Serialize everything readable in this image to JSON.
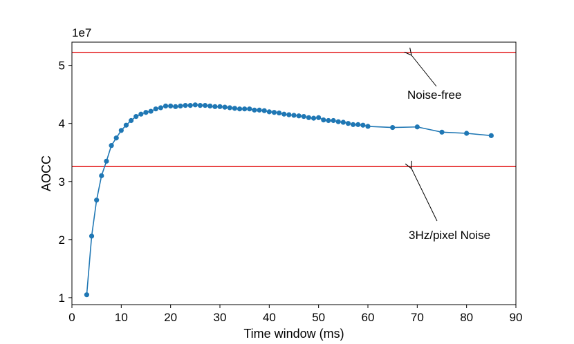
{
  "chart_data": {
    "type": "line",
    "xlabel": "Time window (ms)",
    "ylabel": "AOCC",
    "y_scale_label": "1e7",
    "xlim": [
      0,
      90
    ],
    "ylim": [
      0.88,
      5.4
    ],
    "x_ticks": [
      0,
      10,
      20,
      30,
      40,
      50,
      60,
      70,
      80,
      90
    ],
    "x_tick_labels": [
      "0",
      "10",
      "20",
      "30",
      "40",
      "50",
      "60",
      "70",
      "80",
      "90"
    ],
    "y_ticks": [
      1,
      2,
      3,
      4,
      5
    ],
    "y_tick_labels": [
      "1",
      "2",
      "3",
      "4",
      "5"
    ],
    "grid": false,
    "series": [
      {
        "color": "#1f77b4",
        "marker": "circle",
        "x": [
          3,
          4,
          5,
          6,
          7,
          8,
          9,
          10,
          11,
          12,
          13,
          14,
          15,
          16,
          17,
          18,
          19,
          20,
          21,
          22,
          23,
          24,
          25,
          26,
          27,
          28,
          29,
          30,
          31,
          32,
          33,
          34,
          35,
          36,
          37,
          38,
          39,
          40,
          41,
          42,
          43,
          44,
          45,
          46,
          47,
          48,
          49,
          50,
          51,
          52,
          53,
          54,
          55,
          56,
          57,
          58,
          59,
          60,
          65,
          70,
          75,
          80,
          85
        ],
        "values": [
          1.05,
          2.06,
          2.68,
          3.1,
          3.35,
          3.62,
          3.75,
          3.88,
          3.97,
          4.05,
          4.12,
          4.16,
          4.19,
          4.21,
          4.25,
          4.27,
          4.3,
          4.3,
          4.29,
          4.3,
          4.31,
          4.31,
          4.32,
          4.31,
          4.31,
          4.3,
          4.29,
          4.29,
          4.28,
          4.27,
          4.26,
          4.25,
          4.25,
          4.25,
          4.23,
          4.23,
          4.22,
          4.2,
          4.19,
          4.18,
          4.16,
          4.15,
          4.14,
          4.13,
          4.12,
          4.1,
          4.09,
          4.1,
          4.06,
          4.05,
          4.05,
          4.03,
          4.02,
          4.0,
          3.98,
          3.98,
          3.97,
          3.95,
          3.93,
          3.94,
          3.85,
          3.83,
          3.79
        ]
      }
    ],
    "reference_lines": [
      {
        "y": 5.22,
        "color": "#e31a1c",
        "label": "Noise-free"
      },
      {
        "y": 3.26,
        "color": "#e31a1c",
        "label": "3Hz/pixel Noise"
      }
    ]
  }
}
